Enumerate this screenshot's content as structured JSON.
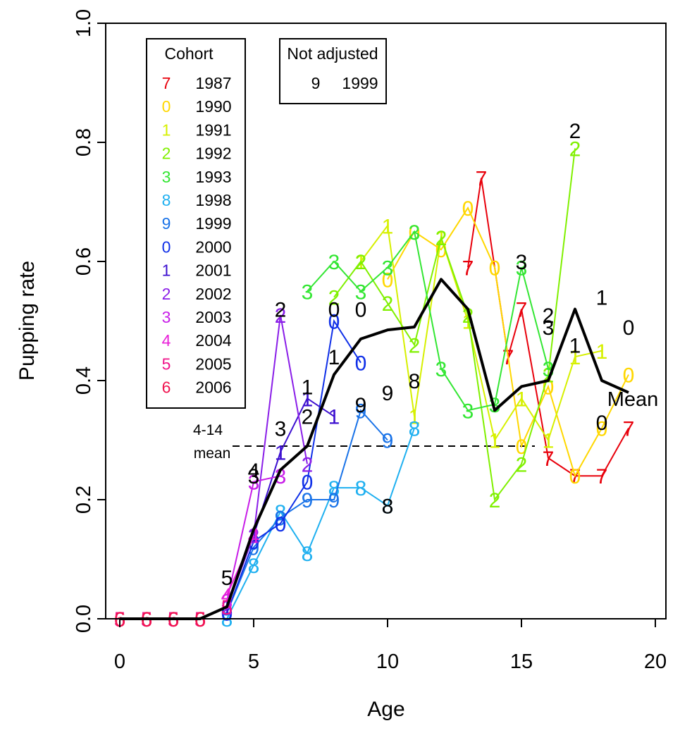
{
  "chart_data": {
    "type": "line",
    "title": "",
    "xlabel": "Age",
    "ylabel": "Pupping rate",
    "xlim": [
      0,
      20
    ],
    "ylim": [
      0,
      1.0
    ],
    "xticks": [
      "0",
      "5",
      "10",
      "15",
      "20"
    ],
    "yticks": [
      "0.0",
      "0.2",
      "0.4",
      "0.6",
      "0.8",
      "1.0"
    ],
    "grid": false,
    "legend": {
      "title": "Cohort",
      "placement": "top-left",
      "entries": [
        {
          "symbol": "7",
          "label": "1987",
          "color": "#e8000b"
        },
        {
          "symbol": "0",
          "label": "1990",
          "color": "#ffd700"
        },
        {
          "symbol": "1",
          "label": "1991",
          "color": "#d6f000"
        },
        {
          "symbol": "2",
          "label": "1992",
          "color": "#80f000"
        },
        {
          "symbol": "3",
          "label": "1993",
          "color": "#33e633"
        },
        {
          "symbol": "8",
          "label": "1998",
          "color": "#1fb0f0"
        },
        {
          "symbol": "9",
          "label": "1999",
          "color": "#1a73e8"
        },
        {
          "symbol": "0",
          "label": "2000",
          "color": "#1030e8"
        },
        {
          "symbol": "1",
          "label": "2001",
          "color": "#3d10d0"
        },
        {
          "symbol": "2",
          "label": "2002",
          "color": "#8a1ee8"
        },
        {
          "symbol": "3",
          "label": "2003",
          "color": "#c81ee8"
        },
        {
          "symbol": "4",
          "label": "2004",
          "color": "#e81ed8"
        },
        {
          "symbol": "5",
          "label": "2005",
          "color": "#f0148a"
        },
        {
          "symbol": "6",
          "label": "2006",
          "color": "#f01450"
        }
      ]
    },
    "not_adjusted": {
      "title": "Not adjusted",
      "symbol": "9",
      "label": "1999"
    },
    "reference_line": {
      "label_line1": "4-14",
      "label_line2": "mean",
      "y": 0.29,
      "x_from": 4,
      "x_to": 15.5
    },
    "series": [
      {
        "symbol": "7",
        "color": "#e8000b",
        "x": [
          13,
          13.5,
          14.5,
          15,
          16,
          17,
          18,
          19
        ],
        "y": [
          0.59,
          0.74,
          0.44,
          0.52,
          0.27,
          0.24,
          0.24,
          0.32
        ]
      },
      {
        "symbol": "0",
        "color": "#ffd700",
        "x": [
          10,
          11,
          12,
          13,
          14,
          15,
          16,
          17,
          18,
          19
        ],
        "y": [
          0.57,
          0.65,
          0.62,
          0.69,
          0.59,
          0.29,
          0.39,
          0.24,
          0.32,
          0.41
        ]
      },
      {
        "symbol": "1",
        "color": "#d6f000",
        "x": [
          9,
          10,
          11,
          12,
          13,
          14,
          15,
          16,
          17,
          18
        ],
        "y": [
          0.6,
          0.66,
          0.34,
          0.64,
          0.5,
          0.3,
          0.37,
          0.3,
          0.44,
          0.45
        ]
      },
      {
        "symbol": "2",
        "color": "#80f000",
        "x": [
          8,
          9,
          10,
          11,
          12,
          13,
          14,
          15,
          16,
          17
        ],
        "y": [
          0.54,
          0.6,
          0.53,
          0.46,
          0.64,
          0.51,
          0.2,
          0.26,
          0.41,
          0.79
        ]
      },
      {
        "symbol": "3",
        "color": "#33e633",
        "x": [
          7,
          8,
          9,
          10,
          11,
          12,
          13,
          14,
          15,
          16
        ],
        "y": [
          0.55,
          0.6,
          0.55,
          0.59,
          0.65,
          0.42,
          0.35,
          0.36,
          0.59,
          0.42
        ]
      },
      {
        "symbol": "8",
        "color": "#1fb0f0",
        "x": [
          4,
          5,
          6,
          7,
          8,
          9,
          10,
          11
        ],
        "y": [
          0.0,
          0.09,
          0.18,
          0.11,
          0.22,
          0.22,
          0.19,
          0.32
        ]
      },
      {
        "symbol": "9",
        "color": "#1a73e8",
        "x": [
          4,
          5,
          6,
          7,
          8,
          9,
          10
        ],
        "y": [
          0.01,
          0.12,
          0.17,
          0.2,
          0.2,
          0.35,
          0.3
        ]
      },
      {
        "symbol": "0",
        "color": "#1030e8",
        "x": [
          4,
          5,
          6,
          7,
          8,
          9
        ],
        "y": [
          0.01,
          0.13,
          0.16,
          0.23,
          0.5,
          0.43
        ]
      },
      {
        "symbol": "1",
        "color": "#3d10d0",
        "x": [
          4,
          5,
          6,
          7,
          8
        ],
        "y": [
          0.02,
          0.14,
          0.28,
          0.37,
          0.34
        ]
      },
      {
        "symbol": "2",
        "color": "#8a1ee8",
        "x": [
          4,
          5,
          6,
          7
        ],
        "y": [
          0.02,
          0.14,
          0.51,
          0.26
        ]
      },
      {
        "symbol": "3",
        "color": "#c81ee8",
        "x": [
          4,
          5,
          6
        ],
        "y": [
          0.03,
          0.23,
          0.24
        ]
      },
      {
        "symbol": "4",
        "color": "#e81ed8",
        "x": [
          4,
          5
        ],
        "y": [
          0.04,
          0.14
        ]
      },
      {
        "symbol": "5",
        "color": "#f0148a",
        "x": [
          0,
          1,
          2,
          3,
          4
        ],
        "y": [
          0.0,
          0.0,
          0.0,
          0.0,
          0.02
        ]
      },
      {
        "symbol": "6",
        "color": "#f01450",
        "x": [
          0,
          1,
          2,
          3
        ],
        "y": [
          0.0,
          0.0,
          0.0,
          0.0
        ]
      }
    ],
    "mean_series": {
      "label": "Mean",
      "color": "#000000",
      "x": [
        0,
        1,
        2,
        3,
        4,
        5,
        6,
        7,
        8,
        9,
        10,
        11,
        12,
        13,
        14,
        15,
        16,
        17,
        18,
        19
      ],
      "y": [
        0.0,
        0.0,
        0.0,
        0.0,
        0.02,
        0.15,
        0.25,
        0.29,
        0.41,
        0.47,
        0.485,
        0.49,
        0.57,
        0.52,
        0.35,
        0.39,
        0.4,
        0.52,
        0.4,
        0.38
      ]
    },
    "unadjusted_labels": [
      {
        "symbol": "5",
        "x": 4,
        "y": 0.07
      },
      {
        "symbol": "4",
        "x": 5,
        "y": 0.25
      },
      {
        "symbol": "3",
        "x": 5,
        "y": 0.24
      },
      {
        "symbol": "3",
        "x": 6,
        "y": 0.32
      },
      {
        "symbol": "2",
        "x": 6,
        "y": 0.52
      },
      {
        "symbol": "1",
        "x": 7,
        "y": 0.39
      },
      {
        "symbol": "2",
        "x": 7,
        "y": 0.34
      },
      {
        "symbol": "1",
        "x": 8,
        "y": 0.44
      },
      {
        "symbol": "0",
        "x": 8,
        "y": 0.52
      },
      {
        "symbol": "0",
        "x": 9,
        "y": 0.52
      },
      {
        "symbol": "9",
        "x": 9,
        "y": 0.36
      },
      {
        "symbol": "9",
        "x": 10,
        "y": 0.38
      },
      {
        "symbol": "8",
        "x": 10,
        "y": 0.19
      },
      {
        "symbol": "8",
        "x": 11,
        "y": 0.4
      },
      {
        "symbol": "3",
        "x": 15,
        "y": 0.6
      },
      {
        "symbol": "2",
        "x": 16,
        "y": 0.51
      },
      {
        "symbol": "3",
        "x": 16,
        "y": 0.49
      },
      {
        "symbol": "1",
        "x": 17,
        "y": 0.46
      },
      {
        "symbol": "2",
        "x": 17,
        "y": 0.82
      },
      {
        "symbol": "1",
        "x": 18,
        "y": 0.54
      },
      {
        "symbol": "0",
        "x": 18,
        "y": 0.33
      },
      {
        "symbol": "0",
        "x": 19,
        "y": 0.49
      }
    ]
  }
}
